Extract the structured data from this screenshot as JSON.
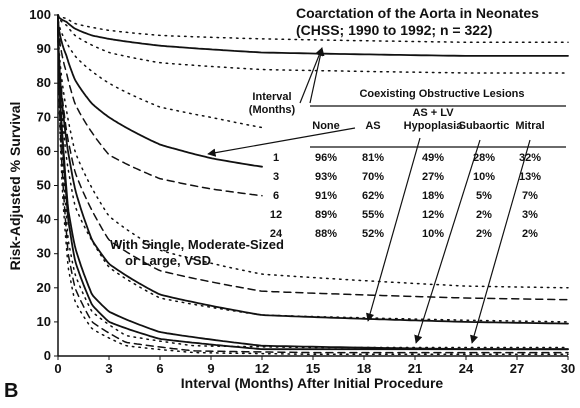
{
  "chart_data": {
    "type": "line",
    "panel_label": "B",
    "title": "Coarctation of the Aorta in Neonates",
    "subtitle": "(CHSS; 1990 to 1992; n = 322)",
    "xlabel": "Interval (Months) After Initial Procedure",
    "ylabel": "Risk-Adjusted % Survival",
    "xlim": [
      0,
      30
    ],
    "ylim": [
      0,
      100
    ],
    "xticks": [
      0,
      3,
      6,
      9,
      12,
      15,
      18,
      21,
      24,
      27,
      30
    ],
    "yticks": [
      0,
      10,
      20,
      30,
      40,
      50,
      60,
      70,
      80,
      90,
      100
    ],
    "grid": false,
    "vsd_label": [
      "With Single, Moderate-Sized",
      "or Large, VSD"
    ],
    "table": {
      "interval_header": [
        "Interval",
        "(Months)"
      ],
      "group_header": "Coexisting Obstructive Lesions",
      "columns": [
        "None",
        "AS",
        "AS + LV Hypoplasia",
        "Subaortic",
        "Mitral"
      ],
      "column_header_lines": [
        [
          "None"
        ],
        [
          "AS"
        ],
        [
          "AS + LV",
          "Hypoplasia"
        ],
        [
          "Subaortic"
        ],
        [
          "Mitral"
        ]
      ],
      "rows": [
        {
          "interval": "1",
          "values": [
            "96%",
            "81%",
            "49%",
            "28%",
            "32%"
          ]
        },
        {
          "interval": "3",
          "values": [
            "93%",
            "70%",
            "27%",
            "10%",
            "13%"
          ]
        },
        {
          "interval": "6",
          "values": [
            "91%",
            "62%",
            "18%",
            "5%",
            "7%"
          ]
        },
        {
          "interval": "12",
          "values": [
            "89%",
            "55%",
            "12%",
            "2%",
            "3%"
          ]
        },
        {
          "interval": "24",
          "values": [
            "88%",
            "52%",
            "10%",
            "2%",
            "2%"
          ]
        }
      ]
    },
    "series": [
      {
        "group": "no VSD",
        "lesion": "None",
        "style": "solid",
        "x": [
          0,
          0.5,
          1,
          2,
          3,
          6,
          12,
          24,
          30
        ],
        "y": [
          100,
          98,
          96,
          94,
          93,
          91,
          89,
          88,
          88
        ]
      },
      {
        "group": "no VSD",
        "lesion": "None",
        "style": "dotted",
        "x": [
          0,
          0.5,
          1,
          3,
          6,
          12,
          24,
          30
        ],
        "y": [
          100,
          99,
          97.5,
          95.5,
          94,
          93,
          92,
          92
        ]
      },
      {
        "group": "no VSD",
        "lesion": "None",
        "style": "dotted",
        "x": [
          0,
          0.5,
          1,
          3,
          6,
          12,
          24,
          30
        ],
        "y": [
          100,
          97,
          94,
          89,
          86,
          84,
          83,
          83
        ]
      },
      {
        "group": "no VSD",
        "lesion": "AS",
        "style": "solid",
        "x": [
          0,
          0.5,
          1,
          2,
          3,
          6,
          9,
          12
        ],
        "y": [
          100,
          88,
          81,
          74,
          70,
          62,
          58,
          55.5
        ]
      },
      {
        "group": "no VSD",
        "lesion": "AS",
        "style": "dotted",
        "x": [
          0,
          0.5,
          1,
          3,
          6,
          9,
          12
        ],
        "y": [
          100,
          92,
          88,
          80,
          73,
          70,
          67
        ]
      },
      {
        "group": "no VSD",
        "lesion": "AS",
        "style": "dashed",
        "x": [
          0,
          0.5,
          1,
          3,
          6,
          9,
          12
        ],
        "y": [
          100,
          83,
          74,
          59,
          52,
          49,
          47
        ]
      },
      {
        "group": "no VSD",
        "lesion": "AS + LV Hypoplasia",
        "style": "solid",
        "x": [
          0,
          0.5,
          1,
          2,
          3,
          6,
          12,
          24,
          30
        ],
        "y": [
          100,
          63,
          49,
          34,
          27,
          18,
          12,
          10,
          9.5
        ]
      },
      {
        "group": "no VSD",
        "lesion": "AS + LV Hypoplasia",
        "style": "dotted",
        "x": [
          0,
          0.5,
          1,
          3,
          6,
          12,
          24,
          30
        ],
        "y": [
          100,
          72,
          60,
          41,
          31,
          24,
          20.5,
          20
        ]
      },
      {
        "group": "no VSD",
        "lesion": "AS + LV Hypoplasia",
        "style": "dashed",
        "x": [
          0,
          0.5,
          1,
          3,
          6,
          12,
          24,
          30
        ],
        "y": [
          100,
          66,
          54,
          34,
          25,
          19,
          17,
          16.5
        ]
      },
      {
        "group": "no VSD",
        "lesion": "AS + LV Hypoplasia",
        "style": "dotted",
        "x": [
          0,
          0.5,
          1,
          3,
          6,
          12,
          24,
          30
        ],
        "y": [
          100,
          58,
          44,
          26,
          17,
          12,
          10.5,
          10
        ]
      },
      {
        "group": "no VSD",
        "lesion": "Subaortic",
        "style": "solid",
        "x": [
          0,
          0.3,
          0.6,
          1,
          2,
          3,
          6,
          12,
          24,
          30
        ],
        "y": [
          100,
          60,
          40,
          28,
          15,
          10,
          5,
          2,
          2,
          2
        ]
      },
      {
        "group": "no VSD",
        "lesion": "Mitral",
        "style": "solid",
        "x": [
          0,
          0.3,
          0.6,
          1,
          2,
          3,
          6,
          12,
          24,
          30
        ],
        "y": [
          100,
          62,
          43,
          32,
          18,
          13,
          7,
          3,
          2,
          2
        ]
      },
      {
        "group": "VSD",
        "lesion": "Subaortic",
        "style": "dashed",
        "x": [
          0,
          0.3,
          0.6,
          1,
          2,
          4,
          8,
          15,
          30
        ],
        "y": [
          100,
          50,
          30,
          20,
          10,
          4,
          1.5,
          1,
          1
        ]
      },
      {
        "group": "VSD",
        "lesion": "Mitral",
        "style": "dotted",
        "x": [
          0,
          0.3,
          0.6,
          1,
          2,
          4,
          8,
          15,
          30
        ],
        "y": [
          100,
          55,
          34,
          24,
          13,
          6,
          3,
          2.5,
          2.5
        ]
      },
      {
        "group": "VSD",
        "lesion": "None",
        "style": "dotted",
        "x": [
          0,
          0.3,
          0.6,
          1,
          2,
          4,
          8,
          15,
          30
        ],
        "y": [
          100,
          45,
          26,
          16,
          8,
          3,
          1,
          0.5,
          0.5
        ]
      }
    ],
    "pointers": [
      {
        "from_label": "Interval (Months)",
        "to_lesion": "None"
      },
      {
        "from_label": "None",
        "to_lesion": "AS"
      },
      {
        "from_label": "AS + LV Hypoplasia",
        "to_lesion": "AS + LV Hypoplasia"
      },
      {
        "from_label": "Subaortic",
        "to_lesion": "Subaortic"
      },
      {
        "from_label": "Mitral",
        "to_lesion": "Mitral"
      }
    ]
  }
}
